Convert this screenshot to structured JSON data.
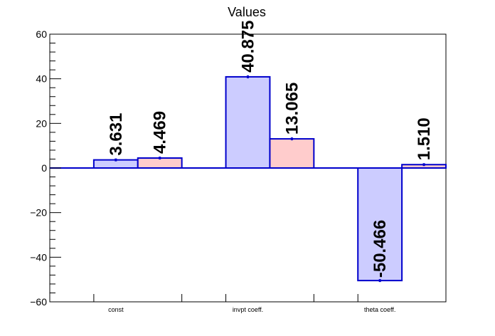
{
  "chart_data": {
    "type": "bar",
    "title": "Values",
    "categories": [
      "const",
      "invpt coeff.",
      "theta coeff."
    ],
    "series": [
      {
        "values": [
          3.631,
          40.875,
          -50.466
        ],
        "labels": [
          "3.631",
          "40.875",
          "-50.466"
        ],
        "fill": "#ccccff",
        "stroke": "#0000cc"
      },
      {
        "values": [
          4.469,
          13.065,
          1.51
        ],
        "labels": [
          "4.469",
          "13.065",
          "1.510"
        ],
        "fill": "#ffcccc",
        "stroke": "#0000cc"
      }
    ],
    "ylim": [
      -60,
      60
    ],
    "yticks": [
      60,
      40,
      20,
      0,
      -20,
      -40,
      -60
    ],
    "ytick_labels": [
      "60",
      "40",
      "20",
      "0",
      "−20",
      "−40",
      "−60"
    ],
    "grid": false,
    "zero_line_color": "#0000cc"
  }
}
